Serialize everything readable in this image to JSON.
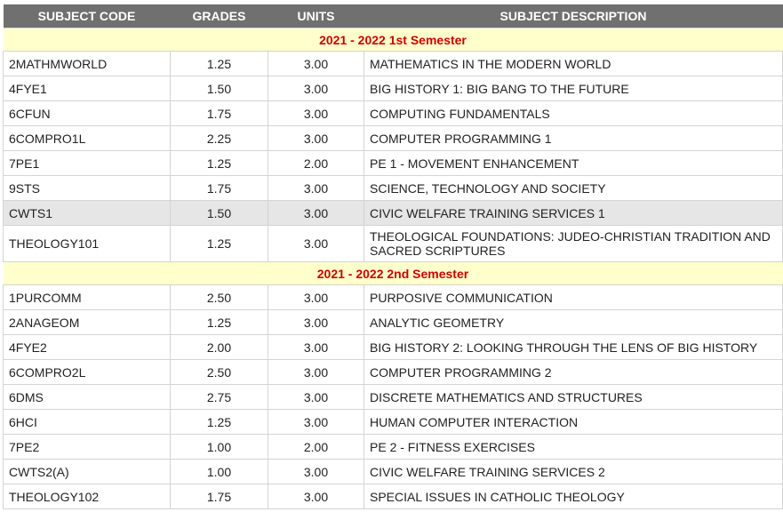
{
  "headers": {
    "code": "SUBJECT CODE",
    "grades": "GRADES",
    "units": "UNITS",
    "description": "SUBJECT DESCRIPTION"
  },
  "semesters": [
    {
      "title": "2021 - 2022  1st Semester",
      "rows": [
        {
          "code": "2MATHMWORLD",
          "grade": "1.25",
          "units": "3.00",
          "description": "MATHEMATICS IN THE MODERN WORLD"
        },
        {
          "code": "4FYE1",
          "grade": "1.50",
          "units": "3.00",
          "description": "BIG HISTORY 1: BIG BANG TO THE FUTURE"
        },
        {
          "code": "6CFUN",
          "grade": "1.75",
          "units": "3.00",
          "description": "COMPUTING FUNDAMENTALS"
        },
        {
          "code": "6COMPRO1L",
          "grade": "2.25",
          "units": "3.00",
          "description": "COMPUTER PROGRAMMING 1"
        },
        {
          "code": "7PE1",
          "grade": "1.25",
          "units": "2.00",
          "description": "PE 1 - MOVEMENT ENHANCEMENT"
        },
        {
          "code": "9STS",
          "grade": "1.75",
          "units": "3.00",
          "description": "SCIENCE, TECHNOLOGY AND SOCIETY"
        },
        {
          "code": "CWTS1",
          "grade": "1.50",
          "units": "3.00",
          "description": "CIVIC WELFARE TRAINING SERVICES 1"
        },
        {
          "code": "THEOLOGY101",
          "grade": "1.25",
          "units": "3.00",
          "description": "THEOLOGICAL FOUNDATIONS: JUDEO-CHRISTIAN TRADITION AND SACRED SCRIPTURES"
        }
      ]
    },
    {
      "title": "2021 - 2022  2nd Semester",
      "rows": [
        {
          "code": "1PURCOMM",
          "grade": "2.50",
          "units": "3.00",
          "description": "PURPOSIVE COMMUNICATION"
        },
        {
          "code": "2ANAGEOM",
          "grade": "1.25",
          "units": "3.00",
          "description": "ANALYTIC GEOMETRY"
        },
        {
          "code": "4FYE2",
          "grade": "2.00",
          "units": "3.00",
          "description": "BIG HISTORY 2: LOOKING THROUGH THE LENS OF BIG HISTORY"
        },
        {
          "code": "6COMPRO2L",
          "grade": "2.50",
          "units": "3.00",
          "description": "COMPUTER PROGRAMMING 2"
        },
        {
          "code": "6DMS",
          "grade": "2.75",
          "units": "3.00",
          "description": "DISCRETE MATHEMATICS AND STRUCTURES"
        },
        {
          "code": "6HCI",
          "grade": "1.25",
          "units": "3.00",
          "description": "HUMAN COMPUTER INTERACTION"
        },
        {
          "code": "7PE2",
          "grade": "1.00",
          "units": "2.00",
          "description": "PE 2 - FITNESS EXERCISES"
        },
        {
          "code": "CWTS2(A)",
          "grade": "1.00",
          "units": "3.00",
          "description": "CIVIC WELFARE TRAINING SERVICES 2"
        },
        {
          "code": "THEOLOGY102",
          "grade": "1.75",
          "units": "3.00",
          "description": "SPECIAL ISSUES IN CATHOLIC THEOLOGY"
        }
      ]
    }
  ]
}
